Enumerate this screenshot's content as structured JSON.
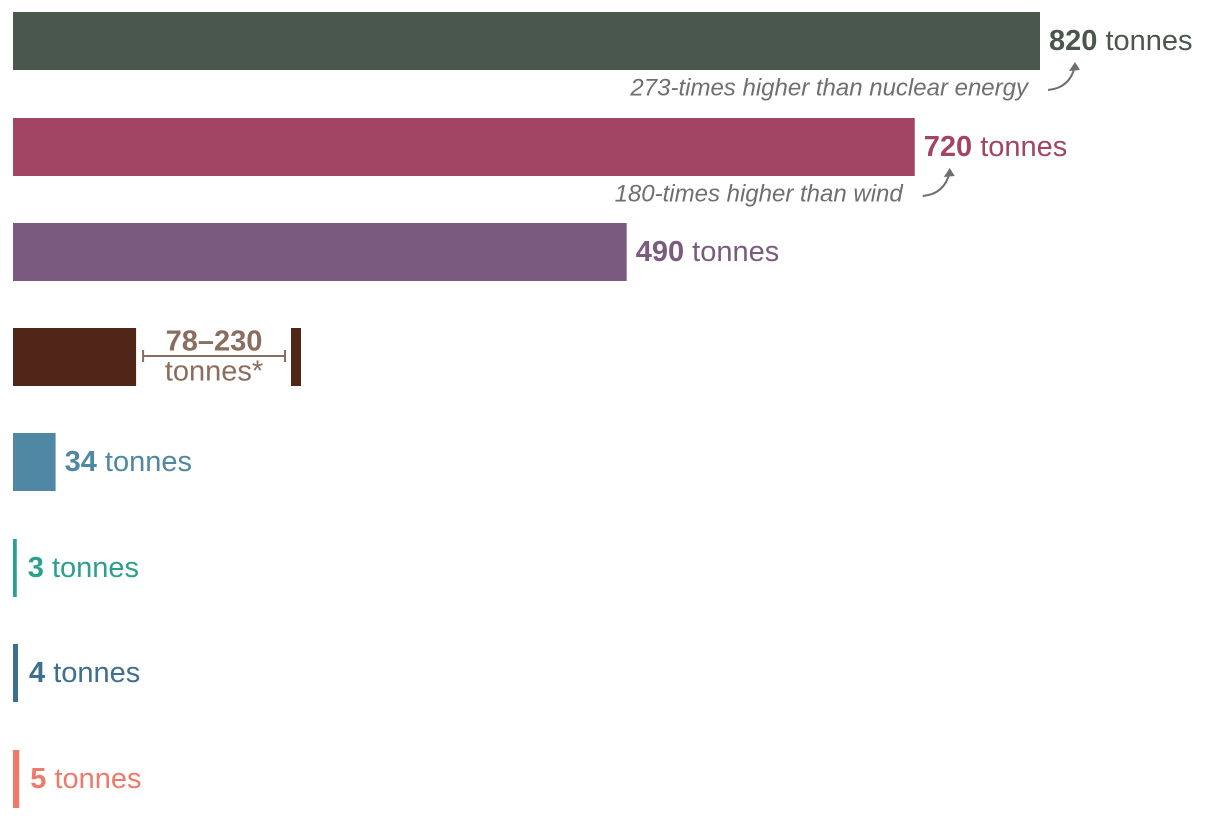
{
  "chart_data": {
    "type": "bar",
    "orientation": "horizontal",
    "unit": "tonnes",
    "title": "",
    "xlabel": "",
    "ylabel": "",
    "xlim": [
      0,
      820
    ],
    "grid": false,
    "legend": "none",
    "bars": [
      {
        "value": 820,
        "label_value": "820",
        "unit": "tonnes",
        "color": "#4a574c",
        "note": "273-times higher than nuclear energy"
      },
      {
        "value": 720,
        "label_value": "720",
        "unit": "tonnes",
        "color": "#a24464",
        "note": "180-times higher than wind"
      },
      {
        "value": 490,
        "label_value": "490",
        "unit": "tonnes",
        "color": "#7a5b7f"
      },
      {
        "value": 78,
        "value_max": 230,
        "label_value": "78–230",
        "unit": "tonnes*",
        "color": "#4f2617",
        "label_color": "#8a6d5e",
        "range": true
      },
      {
        "value": 34,
        "label_value": "34",
        "unit": "tonnes",
        "color": "#5087a3"
      },
      {
        "value": 3,
        "label_value": "3",
        "unit": "tonnes",
        "color": "#2aa090"
      },
      {
        "value": 4,
        "label_value": "4",
        "unit": "tonnes",
        "color": "#3d6f8e"
      },
      {
        "value": 5,
        "label_value": "5",
        "unit": "tonnes",
        "color": "#ef7a6a"
      }
    ]
  }
}
